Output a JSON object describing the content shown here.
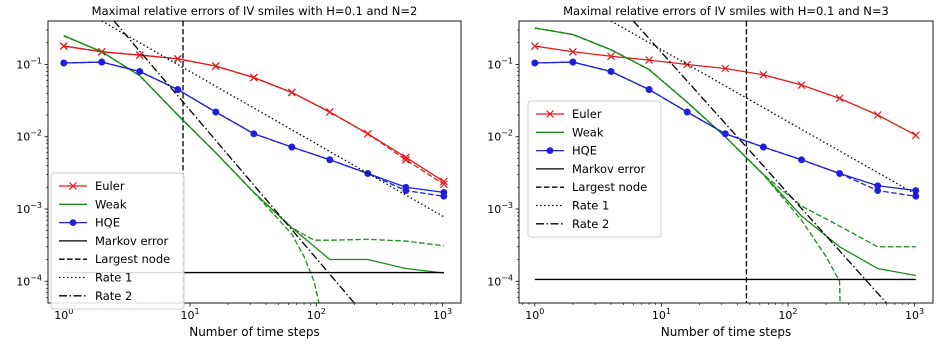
{
  "chart_data": [
    {
      "type": "line",
      "title": "Maximal relative errors of IV smiles with H=0.1 and N=2",
      "xlabel": "Number of time steps",
      "ylabel": "",
      "xscale": "log",
      "yscale": "log",
      "xlim": [
        0.75,
        1400
      ],
      "ylim": [
        5e-05,
        0.4
      ],
      "xticks": [
        {
          "value": 1,
          "base": "10",
          "exp": "0"
        },
        {
          "value": 10,
          "base": "10",
          "exp": "1"
        },
        {
          "value": 100,
          "base": "10",
          "exp": "2"
        },
        {
          "value": 1000,
          "base": "10",
          "exp": "3"
        }
      ],
      "yticks": [
        {
          "value": 0.0001,
          "base": "10",
          "exp": "−4"
        },
        {
          "value": 0.001,
          "base": "10",
          "exp": "−3"
        },
        {
          "value": 0.01,
          "base": "10",
          "exp": "−2"
        },
        {
          "value": 0.1,
          "base": "10",
          "exp": "−1"
        }
      ],
      "legend_position": "lower-left",
      "legend": [
        {
          "label": "Euler",
          "color": "#e41a1c",
          "dash": "solid",
          "marker": "x"
        },
        {
          "label": "Weak",
          "color": "#1a8a1a",
          "dash": "solid",
          "marker": "none"
        },
        {
          "label": "HQE",
          "color": "#1f1fdd",
          "dash": "solid",
          "marker": "circle"
        },
        {
          "label": "Markov error",
          "color": "#000000",
          "dash": "solid",
          "marker": "none"
        },
        {
          "label": "Largest node",
          "color": "#000000",
          "dash": "dashed",
          "marker": "none"
        },
        {
          "label": "Rate 1",
          "color": "#000000",
          "dash": "dotted",
          "marker": "none"
        },
        {
          "label": "Rate 2",
          "color": "#000000",
          "dash": "dashdot",
          "marker": "none"
        }
      ],
      "series": [
        {
          "color": "#e41a1c",
          "dash": "solid",
          "marker": "x",
          "x": [
            1,
            2,
            4,
            8,
            16,
            32,
            64,
            128,
            256,
            512,
            1024
          ],
          "y": [
            0.18,
            0.15,
            0.135,
            0.12,
            0.095,
            0.066,
            0.041,
            0.022,
            0.011,
            0.0052,
            0.0024
          ]
        },
        {
          "color": "#e41a1c",
          "dash": "dashed",
          "marker": "x",
          "x": [
            1,
            2,
            4,
            8,
            16,
            32,
            64,
            128,
            256,
            512,
            1024
          ],
          "y": [
            0.18,
            0.15,
            0.135,
            0.12,
            0.095,
            0.066,
            0.041,
            0.022,
            0.011,
            0.0048,
            0.0022
          ]
        },
        {
          "color": "#1a8a1a",
          "dash": "solid",
          "marker": "none",
          "x": [
            1,
            2,
            4,
            8,
            16,
            32,
            64,
            128,
            256,
            512,
            1024
          ],
          "y": [
            0.25,
            0.15,
            0.07,
            0.02,
            0.006,
            0.0017,
            0.00055,
            0.0002,
            0.0002,
            0.00015,
            0.00013
          ]
        },
        {
          "color": "#1a8a1a",
          "dash": "dashed",
          "marker": "none",
          "x": [
            1,
            2,
            4,
            8,
            16,
            32,
            64,
            96,
            128,
            256,
            512,
            1024
          ],
          "y": [
            0.25,
            0.15,
            0.07,
            0.02,
            0.006,
            0.0017,
            0.00055,
            0.00037,
            0.00037,
            0.00038,
            0.00036,
            0.00031
          ]
        },
        {
          "color": "#1a8a1a",
          "dash": "dashed",
          "marker": "none",
          "x": [
            1,
            2,
            4,
            8,
            16,
            32,
            64,
            80,
            96,
            105
          ],
          "y": [
            0.25,
            0.15,
            0.07,
            0.02,
            0.006,
            0.0017,
            0.00045,
            0.00022,
            0.0001,
            5e-05
          ]
        },
        {
          "color": "#1f1fdd",
          "dash": "solid",
          "marker": "circle",
          "x": [
            1,
            2,
            4,
            8,
            16,
            32,
            64,
            128,
            256,
            512,
            1024
          ],
          "y": [
            0.105,
            0.108,
            0.08,
            0.045,
            0.022,
            0.011,
            0.0072,
            0.0048,
            0.0031,
            0.002,
            0.0017
          ]
        },
        {
          "color": "#1f1fdd",
          "dash": "dashed",
          "marker": "circle",
          "x": [
            1,
            2,
            4,
            8,
            16,
            32,
            64,
            128,
            256,
            512,
            1024
          ],
          "y": [
            0.105,
            0.108,
            0.08,
            0.045,
            0.022,
            0.011,
            0.0072,
            0.0048,
            0.0031,
            0.0018,
            0.0015
          ]
        },
        {
          "color": "#000000",
          "dash": "solid",
          "marker": "none",
          "x": [
            1,
            1024
          ],
          "y": [
            0.000132,
            0.000132
          ]
        },
        {
          "color": "#000000",
          "dash": "dotted",
          "marker": "none",
          "x": [
            2,
            1024
          ],
          "y": [
            0.4,
            0.00078
          ]
        },
        {
          "color": "#000000",
          "dash": "dashdot",
          "marker": "none",
          "x": [
            2.5,
            200
          ],
          "y": [
            0.4,
            5e-05
          ]
        }
      ],
      "vlines": [
        {
          "x": 8.8,
          "color": "#000000",
          "dash": "dashed"
        }
      ]
    },
    {
      "type": "line",
      "title": "Maximal relative errors of IV smiles with H=0.1 and N=3",
      "xlabel": "Number of time steps",
      "ylabel": "",
      "xscale": "log",
      "yscale": "log",
      "xlim": [
        0.75,
        1400
      ],
      "ylim": [
        5e-05,
        0.4
      ],
      "xticks": [
        {
          "value": 1,
          "base": "10",
          "exp": "0"
        },
        {
          "value": 10,
          "base": "10",
          "exp": "1"
        },
        {
          "value": 100,
          "base": "10",
          "exp": "2"
        },
        {
          "value": 1000,
          "base": "10",
          "exp": "3"
        }
      ],
      "yticks": [
        {
          "value": 0.0001,
          "base": "10",
          "exp": "−4"
        },
        {
          "value": 0.001,
          "base": "10",
          "exp": "−3"
        },
        {
          "value": 0.01,
          "base": "10",
          "exp": "−2"
        },
        {
          "value": 0.1,
          "base": "10",
          "exp": "−1"
        }
      ],
      "legend_position": "center-left",
      "legend": [
        {
          "label": "Euler",
          "color": "#e41a1c",
          "dash": "solid",
          "marker": "x"
        },
        {
          "label": "Weak",
          "color": "#1a8a1a",
          "dash": "solid",
          "marker": "none"
        },
        {
          "label": "HQE",
          "color": "#1f1fdd",
          "dash": "solid",
          "marker": "circle"
        },
        {
          "label": "Markov error",
          "color": "#000000",
          "dash": "solid",
          "marker": "none"
        },
        {
          "label": "Largest node",
          "color": "#000000",
          "dash": "dashed",
          "marker": "none"
        },
        {
          "label": "Rate 1",
          "color": "#000000",
          "dash": "dotted",
          "marker": "none"
        },
        {
          "label": "Rate 2",
          "color": "#000000",
          "dash": "dashdot",
          "marker": "none"
        }
      ],
      "series": [
        {
          "color": "#e41a1c",
          "dash": "solid",
          "marker": "x",
          "x": [
            1,
            2,
            4,
            8,
            16,
            32,
            64,
            128,
            256,
            512,
            1024
          ],
          "y": [
            0.18,
            0.15,
            0.13,
            0.115,
            0.1,
            0.088,
            0.072,
            0.052,
            0.034,
            0.02,
            0.0105
          ]
        },
        {
          "color": "#1a8a1a",
          "dash": "solid",
          "marker": "none",
          "x": [
            1,
            2,
            4,
            8,
            16,
            32,
            64,
            128,
            256,
            512,
            1024
          ],
          "y": [
            0.32,
            0.26,
            0.16,
            0.085,
            0.03,
            0.01,
            0.003,
            0.0008,
            0.0003,
            0.00015,
            0.00012
          ]
        },
        {
          "color": "#1a8a1a",
          "dash": "dashed",
          "marker": "none",
          "x": [
            1,
            2,
            4,
            8,
            16,
            32,
            64,
            128,
            256,
            512,
            1024
          ],
          "y": [
            0.32,
            0.26,
            0.16,
            0.085,
            0.03,
            0.01,
            0.003,
            0.0011,
            0.00058,
            0.0003,
            0.0003
          ]
        },
        {
          "color": "#1a8a1a",
          "dash": "dashed",
          "marker": "none",
          "x": [
            1,
            2,
            4,
            8,
            16,
            32,
            64,
            128,
            200,
            256,
            258
          ],
          "y": [
            0.32,
            0.26,
            0.16,
            0.085,
            0.03,
            0.01,
            0.003,
            0.0007,
            0.00022,
            0.0001,
            5e-05
          ]
        },
        {
          "color": "#1f1fdd",
          "dash": "solid",
          "marker": "circle",
          "x": [
            1,
            2,
            4,
            8,
            16,
            32,
            64,
            128,
            256,
            512,
            1024
          ],
          "y": [
            0.105,
            0.108,
            0.08,
            0.045,
            0.022,
            0.011,
            0.0072,
            0.0048,
            0.0031,
            0.0021,
            0.0018
          ]
        },
        {
          "color": "#1f1fdd",
          "dash": "dashed",
          "marker": "circle",
          "x": [
            1,
            2,
            4,
            8,
            16,
            32,
            64,
            128,
            256,
            512,
            1024
          ],
          "y": [
            0.105,
            0.108,
            0.08,
            0.045,
            0.022,
            0.011,
            0.0072,
            0.0048,
            0.0031,
            0.0018,
            0.0015
          ]
        },
        {
          "color": "#000000",
          "dash": "solid",
          "marker": "none",
          "x": [
            1,
            1024
          ],
          "y": [
            0.000106,
            0.000106
          ]
        },
        {
          "color": "#000000",
          "dash": "dotted",
          "marker": "none",
          "x": [
            4,
            1024
          ],
          "y": [
            0.4,
            0.0016
          ]
        },
        {
          "color": "#000000",
          "dash": "dashdot",
          "marker": "none",
          "x": [
            6,
            600
          ],
          "y": [
            0.4,
            5e-05
          ]
        }
      ],
      "vlines": [
        {
          "x": 47,
          "color": "#000000",
          "dash": "dashed"
        }
      ]
    }
  ]
}
